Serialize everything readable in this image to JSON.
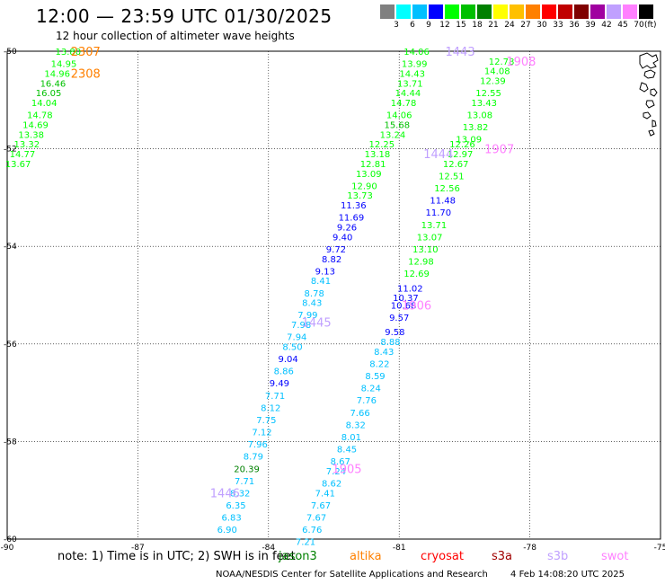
{
  "title": "12:00 — 23:59 UTC 01/30/2025",
  "subtitle": "12 hour collection of altimeter wave heights",
  "scale": {
    "unit": "(ft)",
    "labels": [
      "3",
      "6",
      "9",
      "12",
      "15",
      "18",
      "21",
      "24",
      "27",
      "30",
      "33",
      "36",
      "39",
      "42",
      "45",
      "70"
    ],
    "colors": [
      "#808080",
      "#00ffff",
      "#00c0ff",
      "#0000ff",
      "#00ff00",
      "#00c000",
      "#008000",
      "#ffff00",
      "#ffc000",
      "#ff8000",
      "#ff0000",
      "#c00000",
      "#800000",
      "#a000a0",
      "#c0a0ff",
      "#ff80ff",
      "#000000"
    ]
  },
  "axes": {
    "lon_labels": [
      "-90",
      "-87",
      "-84",
      "-81",
      "-78",
      "-75"
    ],
    "lat_labels": [
      "-50",
      "-52",
      "-54",
      "-56",
      "-58",
      "-60"
    ]
  },
  "notes": {
    "text": "note:  1) Time is in UTC; 2) SWH is in feet"
  },
  "satellites": [
    {
      "name": "jason3",
      "color": "#008000"
    },
    {
      "name": "altika",
      "color": "#ff8000"
    },
    {
      "name": "cryosat",
      "color": "#ff0000"
    },
    {
      "name": "s3a",
      "color": "#a00000"
    },
    {
      "name": "s3b",
      "color": "#c0a0ff"
    },
    {
      "name": "swot",
      "color": "#ff80ff"
    }
  ],
  "footer": {
    "agency": "NOAA/NESDIS Center for Satellite Applications and Research",
    "timestamp": "4 Feb 14:08:20 UTC 2025"
  },
  "time_labels": [
    {
      "text": "2307",
      "color": "#ff8000",
      "lon": -88.2,
      "lat": -50.0
    },
    {
      "text": "2308",
      "color": "#ff8000",
      "lon": -88.2,
      "lat": -50.45
    },
    {
      "text": "1443",
      "color": "#c0a0ff",
      "lon": -79.6,
      "lat": -50.0
    },
    {
      "text": "1908",
      "color": "#ff80ff",
      "lon": -78.2,
      "lat": -50.2
    },
    {
      "text": "1444",
      "color": "#c0a0ff",
      "lon": -80.1,
      "lat": -52.1
    },
    {
      "text": "1907",
      "color": "#ff80ff",
      "lon": -78.7,
      "lat": -52.0
    },
    {
      "text": "1906",
      "color": "#ff80ff",
      "lon": -80.6,
      "lat": -55.2
    },
    {
      "text": "1445",
      "color": "#c0a0ff",
      "lon": -82.9,
      "lat": -55.55
    },
    {
      "text": "1905",
      "color": "#ff80ff",
      "lon": -82.2,
      "lat": -58.55
    },
    {
      "text": "1446",
      "color": "#c0a0ff",
      "lon": -85.0,
      "lat": -59.05
    }
  ],
  "wave_heights": [
    {
      "v": "13.80",
      "c": "#00ff00",
      "lon": -88.6,
      "lat": -50.0
    },
    {
      "v": "14.95",
      "c": "#00ff00",
      "lon": -88.7,
      "lat": -50.25
    },
    {
      "v": "14.96",
      "c": "#00ff00",
      "lon": -88.85,
      "lat": -50.45
    },
    {
      "v": "16.46",
      "c": "#00c000",
      "lon": -88.95,
      "lat": -50.65
    },
    {
      "v": "16.05",
      "c": "#00c000",
      "lon": -89.05,
      "lat": -50.85
    },
    {
      "v": "14.04",
      "c": "#00ff00",
      "lon": -89.15,
      "lat": -51.05
    },
    {
      "v": "14.78",
      "c": "#00ff00",
      "lon": -89.25,
      "lat": -51.3
    },
    {
      "v": "14.69",
      "c": "#00ff00",
      "lon": -89.35,
      "lat": -51.5
    },
    {
      "v": "13.38",
      "c": "#00ff00",
      "lon": -89.45,
      "lat": -51.7
    },
    {
      "v": "13.32",
      "c": "#00ff00",
      "lon": -89.55,
      "lat": -51.9
    },
    {
      "v": "14.77",
      "c": "#00ff00",
      "lon": -89.65,
      "lat": -52.1
    },
    {
      "v": "13.67",
      "c": "#00ff00",
      "lon": -89.75,
      "lat": -52.3
    },
    {
      "v": "14.06",
      "c": "#00ff00",
      "lon": -80.6,
      "lat": -50.0
    },
    {
      "v": "13.99",
      "c": "#00ff00",
      "lon": -80.65,
      "lat": -50.25
    },
    {
      "v": "14.43",
      "c": "#00ff00",
      "lon": -80.7,
      "lat": -50.45
    },
    {
      "v": "13.71",
      "c": "#00ff00",
      "lon": -80.75,
      "lat": -50.65
    },
    {
      "v": "14.44",
      "c": "#00ff00",
      "lon": -80.8,
      "lat": -50.85
    },
    {
      "v": "14.78",
      "c": "#00ff00",
      "lon": -80.9,
      "lat": -51.05
    },
    {
      "v": "14.06",
      "c": "#00ff00",
      "lon": -81.0,
      "lat": -51.3
    },
    {
      "v": "15.68",
      "c": "#00c000",
      "lon": -81.05,
      "lat": -51.5
    },
    {
      "v": "13.24",
      "c": "#00ff00",
      "lon": -81.15,
      "lat": -51.7
    },
    {
      "v": "12.25",
      "c": "#00ff00",
      "lon": -81.4,
      "lat": -51.9
    },
    {
      "v": "13.18",
      "c": "#00ff00",
      "lon": -81.5,
      "lat": -52.1
    },
    {
      "v": "12.81",
      "c": "#00ff00",
      "lon": -81.6,
      "lat": -52.3
    },
    {
      "v": "13.09",
      "c": "#00ff00",
      "lon": -81.7,
      "lat": -52.5
    },
    {
      "v": "12.90",
      "c": "#00ff00",
      "lon": -81.8,
      "lat": -52.75
    },
    {
      "v": "13.73",
      "c": "#00ff00",
      "lon": -81.9,
      "lat": -52.95
    },
    {
      "v": "11.36",
      "c": "#0000ff",
      "lon": -82.05,
      "lat": -53.15
    },
    {
      "v": "11.69",
      "c": "#0000ff",
      "lon": -82.1,
      "lat": -53.4
    },
    {
      "v": "9.26",
      "c": "#0000ff",
      "lon": -82.2,
      "lat": -53.6
    },
    {
      "v": "9.40",
      "c": "#0000ff",
      "lon": -82.3,
      "lat": -53.8
    },
    {
      "v": "9.72",
      "c": "#0000ff",
      "lon": -82.45,
      "lat": -54.05
    },
    {
      "v": "8.82",
      "c": "#0000ff",
      "lon": -82.55,
      "lat": -54.25
    },
    {
      "v": "9.13",
      "c": "#0000ff",
      "lon": -82.7,
      "lat": -54.5
    },
    {
      "v": "8.41",
      "c": "#00c0ff",
      "lon": -82.8,
      "lat": -54.7
    },
    {
      "v": "8.78",
      "c": "#00c0ff",
      "lon": -82.95,
      "lat": -54.95
    },
    {
      "v": "8.43",
      "c": "#00c0ff",
      "lon": -83.0,
      "lat": -55.15
    },
    {
      "v": "7.99",
      "c": "#00c0ff",
      "lon": -83.1,
      "lat": -55.4
    },
    {
      "v": "7.98",
      "c": "#00c0ff",
      "lon": -83.25,
      "lat": -55.6
    },
    {
      "v": "7.94",
      "c": "#00c0ff",
      "lon": -83.35,
      "lat": -55.85
    },
    {
      "v": "8.50",
      "c": "#00c0ff",
      "lon": -83.45,
      "lat": -56.05
    },
    {
      "v": "9.04",
      "c": "#0000ff",
      "lon": -83.55,
      "lat": -56.3
    },
    {
      "v": "8.86",
      "c": "#00c0ff",
      "lon": -83.65,
      "lat": -56.55
    },
    {
      "v": "9.49",
      "c": "#0000ff",
      "lon": -83.75,
      "lat": -56.8
    },
    {
      "v": "7.71",
      "c": "#00c0ff",
      "lon": -83.85,
      "lat": -57.05
    },
    {
      "v": "8.12",
      "c": "#00c0ff",
      "lon": -83.95,
      "lat": -57.3
    },
    {
      "v": "7.75",
      "c": "#00c0ff",
      "lon": -84.05,
      "lat": -57.55
    },
    {
      "v": "7.12",
      "c": "#00c0ff",
      "lon": -84.15,
      "lat": -57.8
    },
    {
      "v": "7.96",
      "c": "#00c0ff",
      "lon": -84.25,
      "lat": -58.05
    },
    {
      "v": "8.79",
      "c": "#00c0ff",
      "lon": -84.35,
      "lat": -58.3
    },
    {
      "v": "20.39",
      "c": "#008000",
      "lon": -84.5,
      "lat": -58.55
    },
    {
      "v": "7.71",
      "c": "#00c0ff",
      "lon": -84.55,
      "lat": -58.8
    },
    {
      "v": "8.32",
      "c": "#00c0ff",
      "lon": -84.65,
      "lat": -59.05
    },
    {
      "v": "6.35",
      "c": "#00c0ff",
      "lon": -84.75,
      "lat": -59.3
    },
    {
      "v": "6.83",
      "c": "#00c0ff",
      "lon": -84.85,
      "lat": -59.55
    },
    {
      "v": "6.90",
      "c": "#00c0ff",
      "lon": -84.95,
      "lat": -59.8
    },
    {
      "v": "12.78",
      "c": "#00ff00",
      "lon": -78.65,
      "lat": -50.2
    },
    {
      "v": "14.08",
      "c": "#00ff00",
      "lon": -78.75,
      "lat": -50.4
    },
    {
      "v": "12.39",
      "c": "#00ff00",
      "lon": -78.85,
      "lat": -50.6
    },
    {
      "v": "12.55",
      "c": "#00ff00",
      "lon": -78.95,
      "lat": -50.85
    },
    {
      "v": "13.43",
      "c": "#00ff00",
      "lon": -79.05,
      "lat": -51.05
    },
    {
      "v": "13.08",
      "c": "#00ff00",
      "lon": -79.15,
      "lat": -51.3
    },
    {
      "v": "13.82",
      "c": "#00ff00",
      "lon": -79.25,
      "lat": -51.55
    },
    {
      "v": "13.09",
      "c": "#00ff00",
      "lon": -79.4,
      "lat": -51.8
    },
    {
      "v": "12.26",
      "c": "#00ff00",
      "lon": -79.55,
      "lat": -51.9
    },
    {
      "v": "12.97",
      "c": "#00ff00",
      "lon": -79.6,
      "lat": -52.1
    },
    {
      "v": "12.67",
      "c": "#00ff00",
      "lon": -79.7,
      "lat": -52.3
    },
    {
      "v": "12.51",
      "c": "#00ff00",
      "lon": -79.8,
      "lat": -52.55
    },
    {
      "v": "12.56",
      "c": "#00ff00",
      "lon": -79.9,
      "lat": -52.8
    },
    {
      "v": "11.48",
      "c": "#0000ff",
      "lon": -80.0,
      "lat": -53.05
    },
    {
      "v": "11.70",
      "c": "#0000ff",
      "lon": -80.1,
      "lat": -53.3
    },
    {
      "v": "13.71",
      "c": "#00ff00",
      "lon": -80.2,
      "lat": -53.55
    },
    {
      "v": "13.07",
      "c": "#00ff00",
      "lon": -80.3,
      "lat": -53.8
    },
    {
      "v": "13.10",
      "c": "#00ff00",
      "lon": -80.4,
      "lat": -54.05
    },
    {
      "v": "12.98",
      "c": "#00ff00",
      "lon": -80.5,
      "lat": -54.3
    },
    {
      "v": "12.69",
      "c": "#00ff00",
      "lon": -80.6,
      "lat": -54.55
    },
    {
      "v": "11.02",
      "c": "#0000ff",
      "lon": -80.75,
      "lat": -54.85
    },
    {
      "v": "10.37",
      "c": "#0000ff",
      "lon": -80.85,
      "lat": -55.05
    },
    {
      "v": "10.68",
      "c": "#0000ff",
      "lon": -80.9,
      "lat": -55.2
    },
    {
      "v": "9.57",
      "c": "#0000ff",
      "lon": -81.0,
      "lat": -55.45
    },
    {
      "v": "9.58",
      "c": "#0000ff",
      "lon": -81.1,
      "lat": -55.75
    },
    {
      "v": "8.88",
      "c": "#00c0ff",
      "lon": -81.2,
      "lat": -55.95
    },
    {
      "v": "8.43",
      "c": "#00c0ff",
      "lon": -81.35,
      "lat": -56.15
    },
    {
      "v": "8.22",
      "c": "#00c0ff",
      "lon": -81.45,
      "lat": -56.4
    },
    {
      "v": "8.59",
      "c": "#00c0ff",
      "lon": -81.55,
      "lat": -56.65
    },
    {
      "v": "8.24",
      "c": "#00c0ff",
      "lon": -81.65,
      "lat": -56.9
    },
    {
      "v": "7.76",
      "c": "#00c0ff",
      "lon": -81.75,
      "lat": -57.15
    },
    {
      "v": "7.66",
      "c": "#00c0ff",
      "lon": -81.9,
      "lat": -57.4
    },
    {
      "v": "8.32",
      "c": "#00c0ff",
      "lon": -82.0,
      "lat": -57.65
    },
    {
      "v": "8.01",
      "c": "#00c0ff",
      "lon": -82.1,
      "lat": -57.9
    },
    {
      "v": "8.45",
      "c": "#00c0ff",
      "lon": -82.2,
      "lat": -58.15
    },
    {
      "v": "8.67",
      "c": "#00c0ff",
      "lon": -82.35,
      "lat": -58.4
    },
    {
      "v": "7.24",
      "c": "#00c0ff",
      "lon": -82.45,
      "lat": -58.6
    },
    {
      "v": "8.62",
      "c": "#00c0ff",
      "lon": -82.55,
      "lat": -58.85
    },
    {
      "v": "7.41",
      "c": "#00c0ff",
      "lon": -82.7,
      "lat": -59.05
    },
    {
      "v": "7.67",
      "c": "#00c0ff",
      "lon": -82.8,
      "lat": -59.3
    },
    {
      "v": "7.67",
      "c": "#00c0ff",
      "lon": -82.9,
      "lat": -59.55
    },
    {
      "v": "6.76",
      "c": "#00c0ff",
      "lon": -83.0,
      "lat": -59.8
    },
    {
      "v": "7.21",
      "c": "#00c0ff",
      "lon": -83.15,
      "lat": -60.05
    }
  ]
}
